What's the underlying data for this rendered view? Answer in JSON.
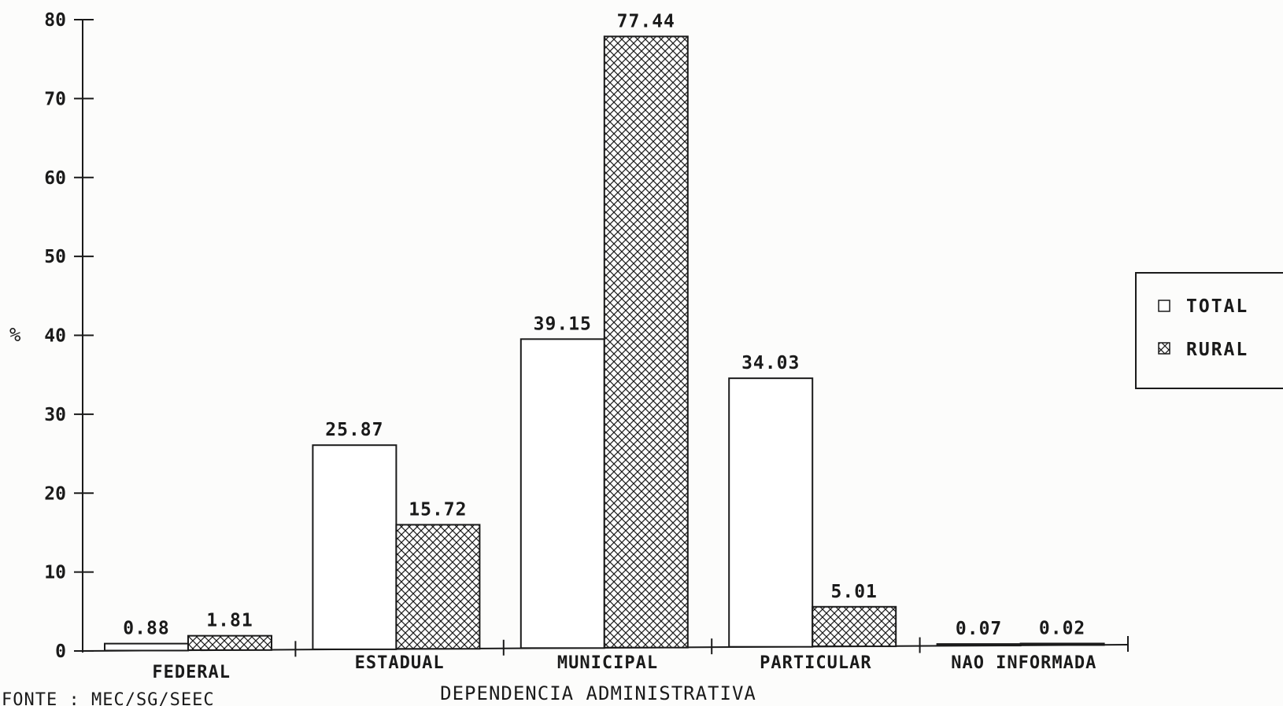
{
  "chart_data": {
    "type": "bar",
    "categories": [
      "FEDERAL",
      "ESTADUAL",
      "MUNICIPAL",
      "PARTICULAR",
      "NAO INFORMADA"
    ],
    "series": [
      {
        "name": "TOTAL",
        "values": [
          0.88,
          25.87,
          39.15,
          34.03,
          0.07
        ],
        "value_labels": [
          "0.88",
          "25.87",
          "39.15",
          "34.03",
          "0.07"
        ],
        "pattern": "none"
      },
      {
        "name": "RURAL",
        "values": [
          1.81,
          15.72,
          77.44,
          5.01,
          0.02
        ],
        "value_labels": [
          "1.81",
          "15.72",
          "77.44",
          "5.01",
          "0.02"
        ],
        "pattern": "crosshatch"
      }
    ],
    "ylabel": "%",
    "xlabel": "DEPENDENCIA ADMINISTRATIVA",
    "ylim": [
      0,
      80
    ],
    "yticks": [
      "0",
      "10",
      "20",
      "30",
      "40",
      "50",
      "60",
      "70",
      "80"
    ],
    "grid": false,
    "legend_position": "right"
  },
  "source_note": "FONTE : MEC/SG/SEEC",
  "colors": {
    "ink": "#1a1a1a",
    "bar_fill": "#ffffff",
    "background": "#fcfcfb"
  }
}
